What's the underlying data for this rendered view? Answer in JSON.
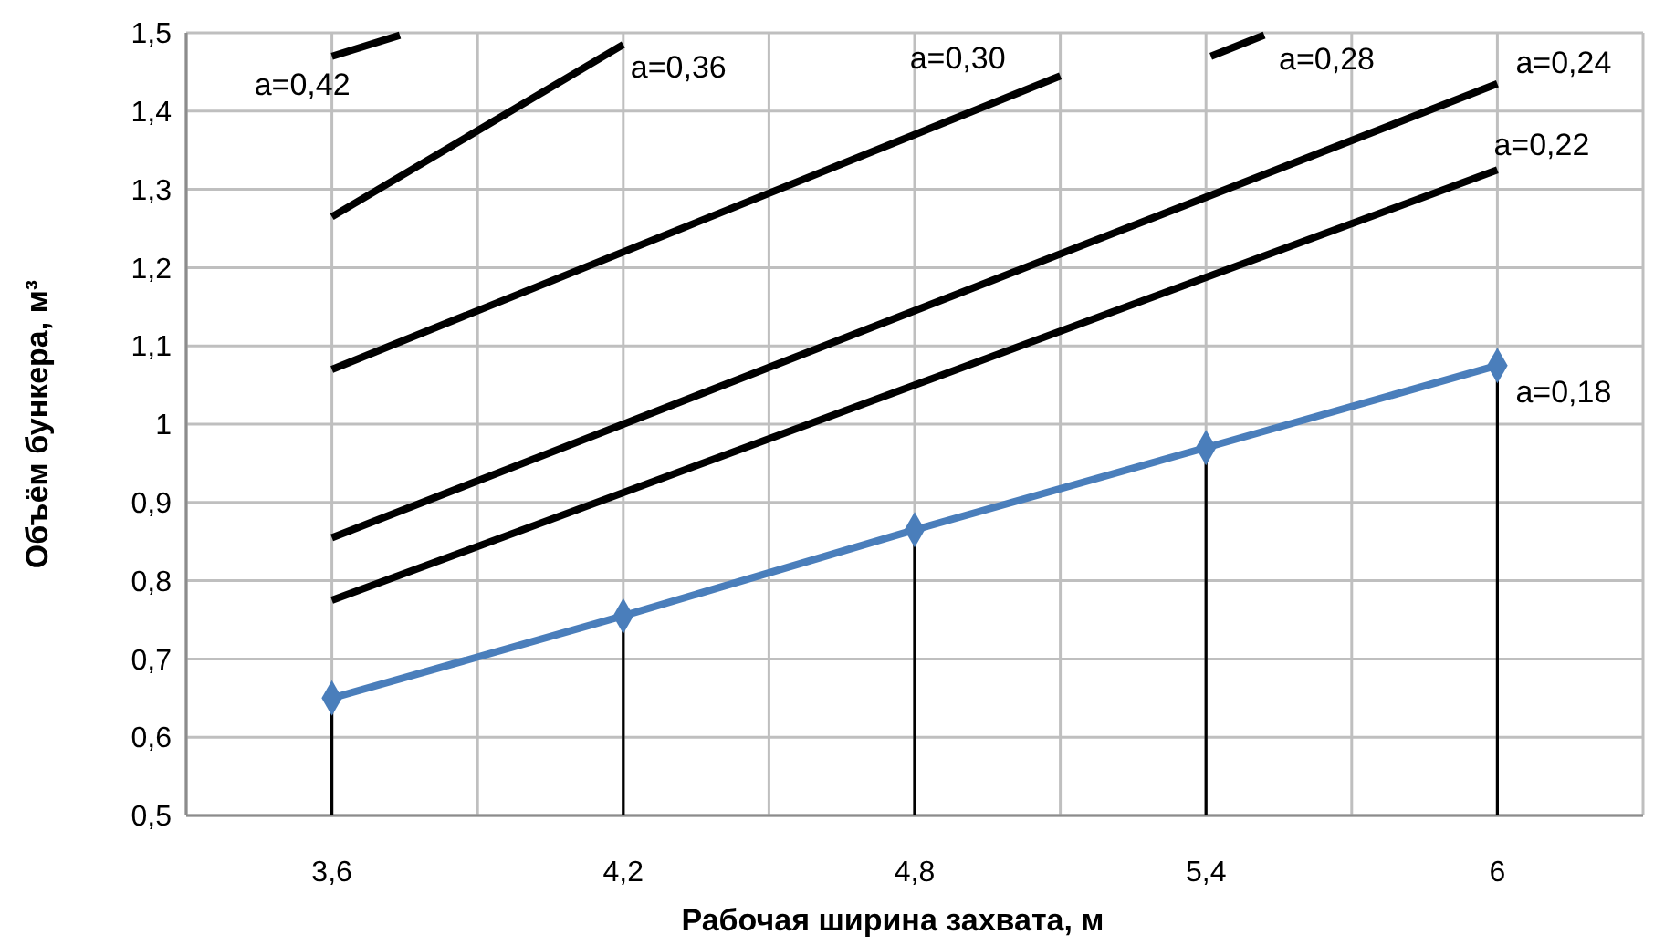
{
  "chart_data": {
    "type": "line",
    "xlabel": "Рабочая ширина захвата, м",
    "ylabel": "Объём бункера, м³",
    "xlim": [
      3.3,
      6.3
    ],
    "xticks": [
      {
        "value": 3.3,
        "label": null
      },
      {
        "value": 3.6,
        "label": "3,6"
      },
      {
        "value": 3.9,
        "label": null
      },
      {
        "value": 4.2,
        "label": "4,2"
      },
      {
        "value": 4.5,
        "label": null
      },
      {
        "value": 4.8,
        "label": "4,8"
      },
      {
        "value": 5.1,
        "label": null
      },
      {
        "value": 5.4,
        "label": "5,4"
      },
      {
        "value": 5.7,
        "label": null
      },
      {
        "value": 6,
        "label": "6"
      },
      {
        "value": 6.3,
        "label": null
      }
    ],
    "ylim": [
      0.5,
      1.5
    ],
    "yticks": [
      {
        "value": 0.5,
        "label": "0,5"
      },
      {
        "value": 0.6,
        "label": "0,6"
      },
      {
        "value": 0.7,
        "label": "0,7"
      },
      {
        "value": 0.8,
        "label": "0,8"
      },
      {
        "value": 0.9,
        "label": "0,9"
      },
      1,
      {
        "value": 1.1,
        "label": "1,1"
      },
      {
        "value": 1.2,
        "label": "1,2"
      },
      {
        "value": 1.3,
        "label": "1,3"
      },
      {
        "value": 1.4,
        "label": "1,4"
      },
      {
        "value": 1.5,
        "label": "1,5"
      }
    ],
    "grid": true,
    "legend": false,
    "series": [
      {
        "name": "a=0,18",
        "color": "#4a7ebb",
        "marker": "none",
        "x": [
          3.6,
          4.2,
          4.8,
          5.4,
          6
        ],
        "values": [
          0.65,
          0.755,
          0.865,
          0.97,
          1.075
        ]
      },
      {
        "type": "lollipop",
        "color": "#4a7ebb",
        "marker": "diamond",
        "x": [
          3.6,
          4.2,
          4.8,
          5.4,
          6
        ],
        "values": [
          0.65,
          0.755,
          0.865,
          0.97,
          1.075
        ]
      },
      {
        "name": "a=0,22",
        "color": "#000000",
        "x": [
          3.6,
          6
        ],
        "values": [
          0.775,
          1.325
        ]
      },
      {
        "name": "a=0,24",
        "color": "#000000",
        "x": [
          3.6,
          6
        ],
        "values": [
          0.855,
          1.435
        ]
      },
      {
        "name": "a=0,30",
        "color": "#000000",
        "x": [
          3.6,
          5.1
        ],
        "values": [
          1.07,
          1.445
        ]
      },
      {
        "name": "a=0,36",
        "color": "#000000",
        "x": [
          3.6,
          4.2
        ],
        "values": [
          1.265,
          1.485
        ]
      },
      {
        "name": "a=0,42",
        "color": "#000000",
        "x": [
          3.6,
          3.74
        ],
        "values": [
          1.47,
          1.497
        ]
      },
      {
        "name": "a=0,28",
        "color": "#000000",
        "x": [
          5.41,
          5.52
        ],
        "values": [
          1.47,
          1.497
        ]
      }
    ]
  }
}
